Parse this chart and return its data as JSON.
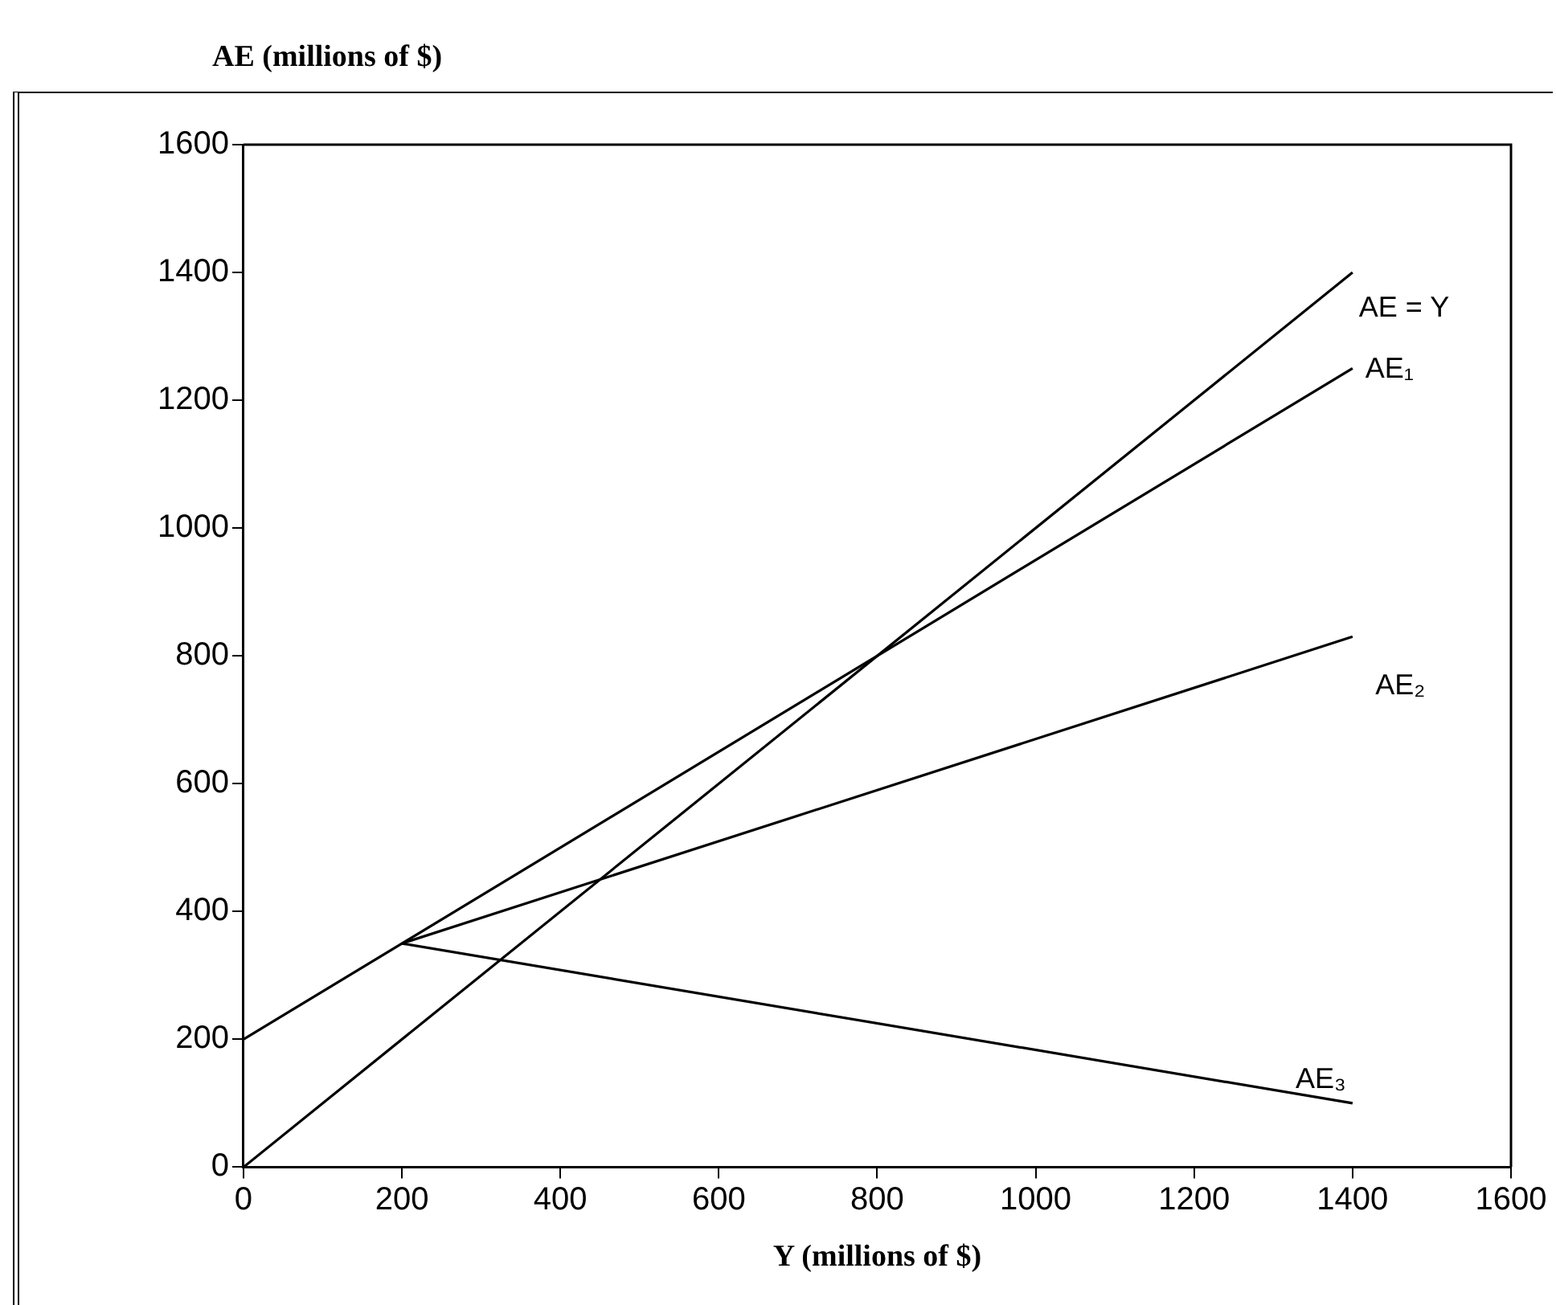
{
  "chart_data": {
    "type": "line",
    "xlabel": "Y (millions of $)",
    "ylabel": "AE (millions of $)",
    "xlim": [
      0,
      1600
    ],
    "xticks": [
      0,
      200,
      400,
      600,
      800,
      1000,
      1200,
      1400,
      1600
    ],
    "ylim": [
      0,
      1600
    ],
    "yticks": [
      0,
      200,
      400,
      600,
      800,
      1000,
      1200,
      1400,
      1600
    ],
    "grid": false,
    "legend": false,
    "marker": "none",
    "line_style": "solid",
    "series": [
      {
        "name": "AE = Y",
        "color": "#000000",
        "x": [
          0,
          1400
        ],
        "values": [
          0,
          1400
        ]
      },
      {
        "name": "AE₁",
        "color": "#000000",
        "x": [
          0,
          1400
        ],
        "values": [
          200,
          1250
        ]
      },
      {
        "name": "AE₂",
        "color": "#000000",
        "x": [
          200,
          1400
        ],
        "values": [
          350,
          830
        ]
      },
      {
        "name": "AE₃",
        "color": "#000000",
        "x": [
          200,
          1400
        ],
        "values": [
          350,
          100
        ]
      }
    ]
  }
}
